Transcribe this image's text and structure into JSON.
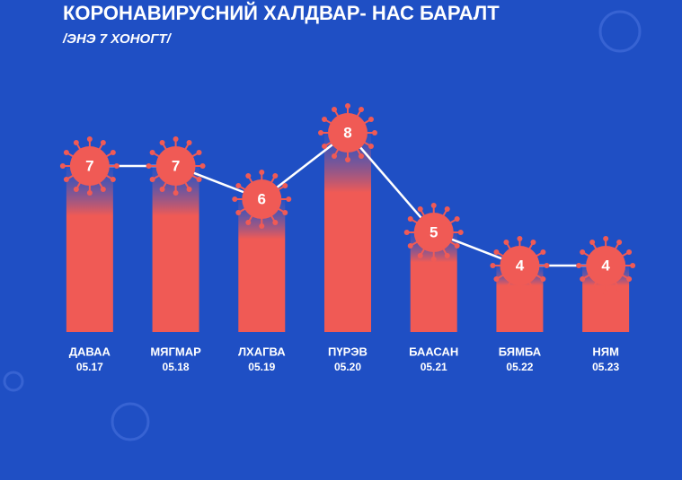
{
  "chart_data": {
    "type": "bar-line",
    "title": "КОРОНАВИРУСНИЙ ХАЛДВАР- НАС БАРАЛТ",
    "subtitle": "/ЭНЭ 7 ХОНОГТ/",
    "categories": [
      "ДАВАА",
      "МЯГМАР",
      "ЛХАГВА",
      "ПҮРЭВ",
      "БААСАН",
      "БЯМБА",
      "НЯМ"
    ],
    "dates": [
      "05.17",
      "05.18",
      "05.19",
      "05.20",
      "05.21",
      "05.22",
      "05.23"
    ],
    "values": [
      7,
      7,
      6,
      8,
      5,
      4,
      4
    ],
    "color": "#f05a55",
    "line_color": "#ffffff",
    "ylim": [
      2,
      9
    ]
  }
}
